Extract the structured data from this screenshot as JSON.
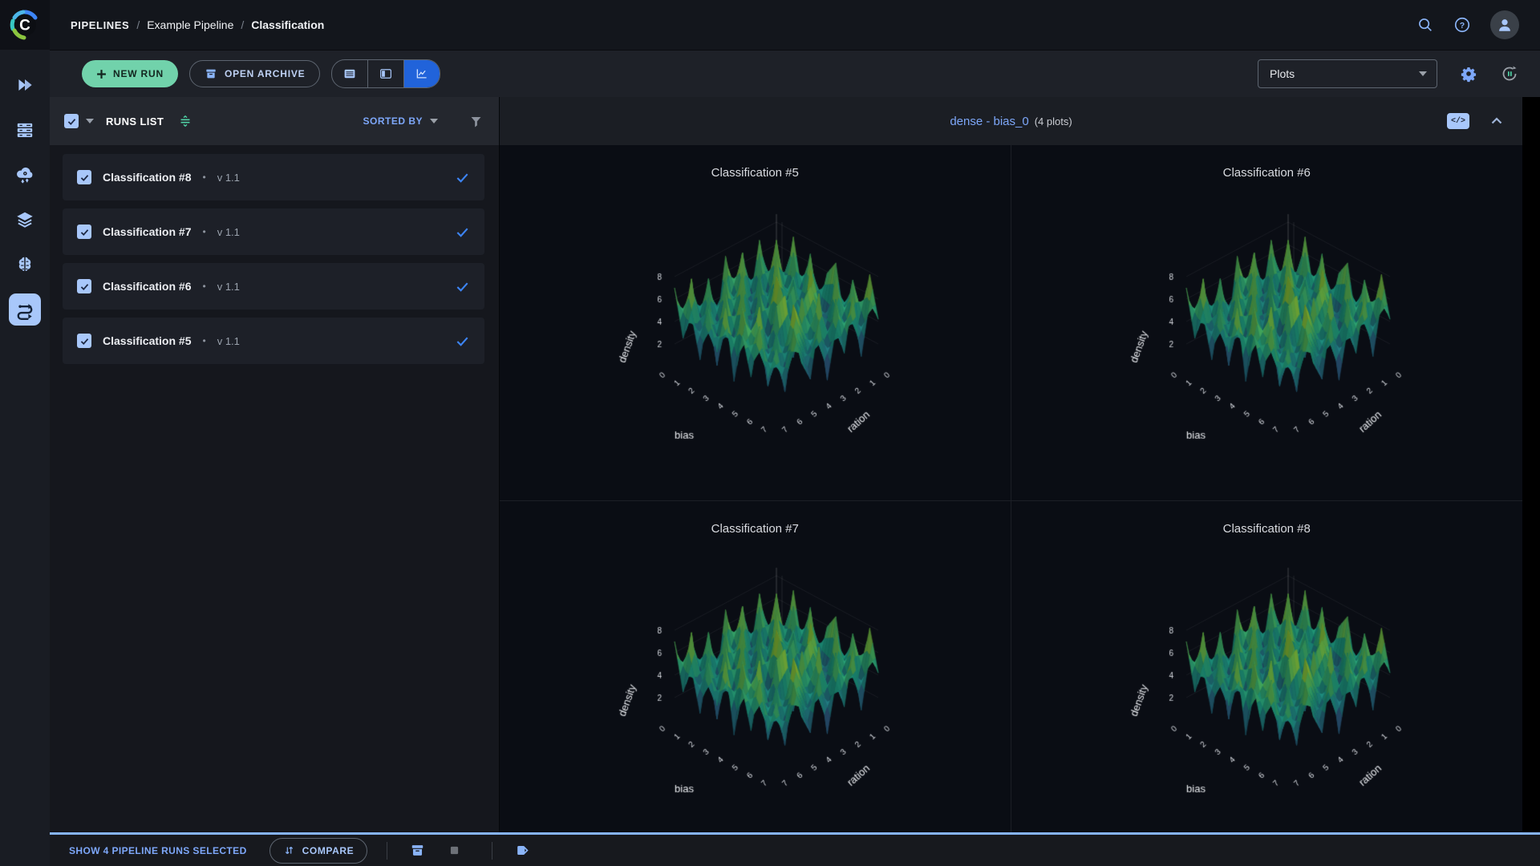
{
  "topbar": {
    "breadcrumb": {
      "root": "PIPELINES",
      "sep": "/",
      "parent": "Example Pipeline",
      "current": "Classification"
    }
  },
  "toolbar": {
    "new_run_label": "NEW RUN",
    "open_archive_label": "OPEN ARCHIVE",
    "view_dropdown_value": "Plots"
  },
  "runs_panel": {
    "title": "RUNS LIST",
    "sorted_by_label": "SORTED BY",
    "runs": [
      {
        "name": "Classification #8",
        "separator": "•",
        "version": "v 1.1"
      },
      {
        "name": "Classification #7",
        "separator": "•",
        "version": "v 1.1"
      },
      {
        "name": "Classification #6",
        "separator": "•",
        "version": "v 1.1"
      },
      {
        "name": "Classification #5",
        "separator": "•",
        "version": "v 1.1"
      }
    ]
  },
  "plots_panel": {
    "group_title": "dense - bias_0",
    "group_count": "(4 plots)",
    "code_chip_label": "</>",
    "chart_data": {
      "type": "surface",
      "titles": [
        "Classification #5",
        "Classification #6",
        "Classification #7",
        "Classification #8"
      ],
      "xlabel": "bias",
      "ylabel": "ration",
      "zlabel": "density",
      "x_ticks": [
        0,
        1,
        2,
        3,
        4,
        5,
        6,
        7
      ],
      "y_ticks": [
        7,
        6,
        5,
        4,
        3,
        2,
        1,
        0
      ],
      "z_ticks": [
        2,
        4,
        6,
        8
      ],
      "zlim": [
        0,
        8
      ],
      "colorscale": "viridis",
      "z_grid": [
        [
          6.2,
          2.1,
          7.5,
          3.0,
          6.8,
          1.5,
          5.9,
          7.2,
          2.4,
          6.5,
          3.8,
          7.8,
          4.2
        ],
        [
          1.8,
          5.5,
          2.9,
          6.9,
          2.2,
          7.4,
          3.1,
          1.9,
          6.8,
          2.6,
          7.1,
          2.0,
          6.3
        ],
        [
          7.2,
          3.4,
          8.0,
          1.2,
          5.6,
          2.8,
          6.7,
          4.5,
          1.4,
          7.6,
          2.3,
          5.8,
          1.7
        ],
        [
          2.5,
          6.8,
          1.6,
          7.3,
          3.9,
          6.1,
          0.9,
          7.8,
          5.2,
          1.8,
          6.4,
          3.2,
          7.4
        ],
        [
          6.9,
          1.3,
          5.7,
          2.4,
          7.9,
          1.1,
          6.3,
          2.7,
          7.1,
          4.0,
          1.5,
          6.9,
          2.8
        ],
        [
          3.6,
          7.7,
          2.0,
          6.5,
          1.7,
          7.2,
          4.8,
          1.3,
          5.9,
          2.2,
          7.7,
          1.9,
          5.4
        ],
        [
          7.4,
          2.6,
          6.6,
          1.0,
          5.3,
          3.5,
          8.0,
          6.1,
          1.6,
          7.3,
          3.0,
          6.0,
          1.2
        ],
        [
          1.5,
          6.2,
          3.3,
          7.6,
          2.1,
          6.6,
          1.8,
          4.4,
          7.5,
          2.9,
          5.6,
          2.5,
          7.0
        ],
        [
          5.8,
          2.3,
          7.1,
          1.9,
          6.4,
          0.8,
          5.5,
          2.0,
          6.9,
          1.2,
          7.9,
          4.6,
          2.1
        ],
        [
          2.7,
          7.0,
          1.4,
          5.8,
          3.7,
          7.5,
          2.5,
          6.7,
          1.1,
          5.4,
          2.8,
          6.6,
          3.9
        ],
        [
          6.6,
          1.7,
          6.1,
          2.8,
          7.3,
          1.6,
          6.9,
          3.6,
          7.7,
          2.4,
          6.2,
          1.4,
          7.2
        ],
        [
          3.1,
          7.8,
          2.2,
          6.3,
          1.3,
          5.7,
          2.9,
          7.4,
          4.1,
          6.8,
          1.9,
          5.2,
          2.6
        ],
        [
          7.0,
          2.9,
          5.4,
          1.8,
          6.7,
          3.3,
          7.6,
          1.5,
          6.0,
          2.7,
          7.5,
          3.4,
          6.4
        ]
      ]
    }
  },
  "footer": {
    "selection_label": "SHOW 4 PIPELINE RUNS SELECTED",
    "compare_label": "COMPARE"
  },
  "colors": {
    "accent_blue": "#2163da",
    "light_blue": "#a8c7fa",
    "link_blue": "#7da7f9",
    "teal_button": "#71d2ab",
    "row_check_blue": "#3d85f7",
    "green_icon": "#4fd0a4"
  }
}
